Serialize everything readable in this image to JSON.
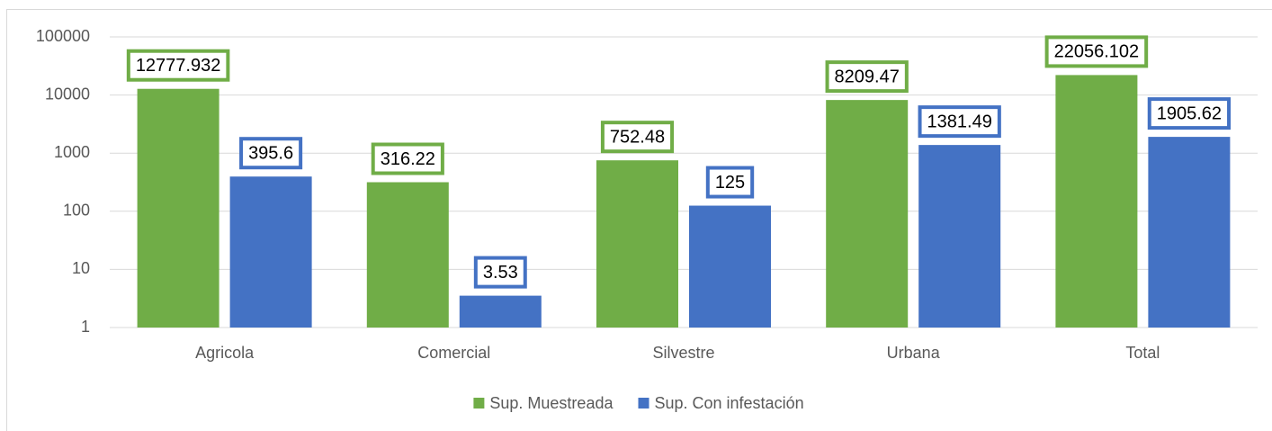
{
  "chart_data": {
    "type": "bar",
    "categories": [
      "Agricola",
      "Comercial",
      "Silvestre",
      "Urbana",
      "Total"
    ],
    "series": [
      {
        "name": "Sup. Muestreada",
        "color": "#70ad47",
        "values": [
          12777.932,
          316.22,
          752.48,
          8209.47,
          22056.102
        ]
      },
      {
        "name": "Sup. Con infestación",
        "color": "#4472c4",
        "values": [
          395.6,
          3.53,
          125,
          1381.49,
          1905.62
        ]
      }
    ],
    "ylim": [
      1,
      100000
    ],
    "yticks": [
      1,
      10,
      100,
      1000,
      10000,
      100000
    ],
    "log_scale": true,
    "grid": true,
    "legend": "bottom"
  }
}
